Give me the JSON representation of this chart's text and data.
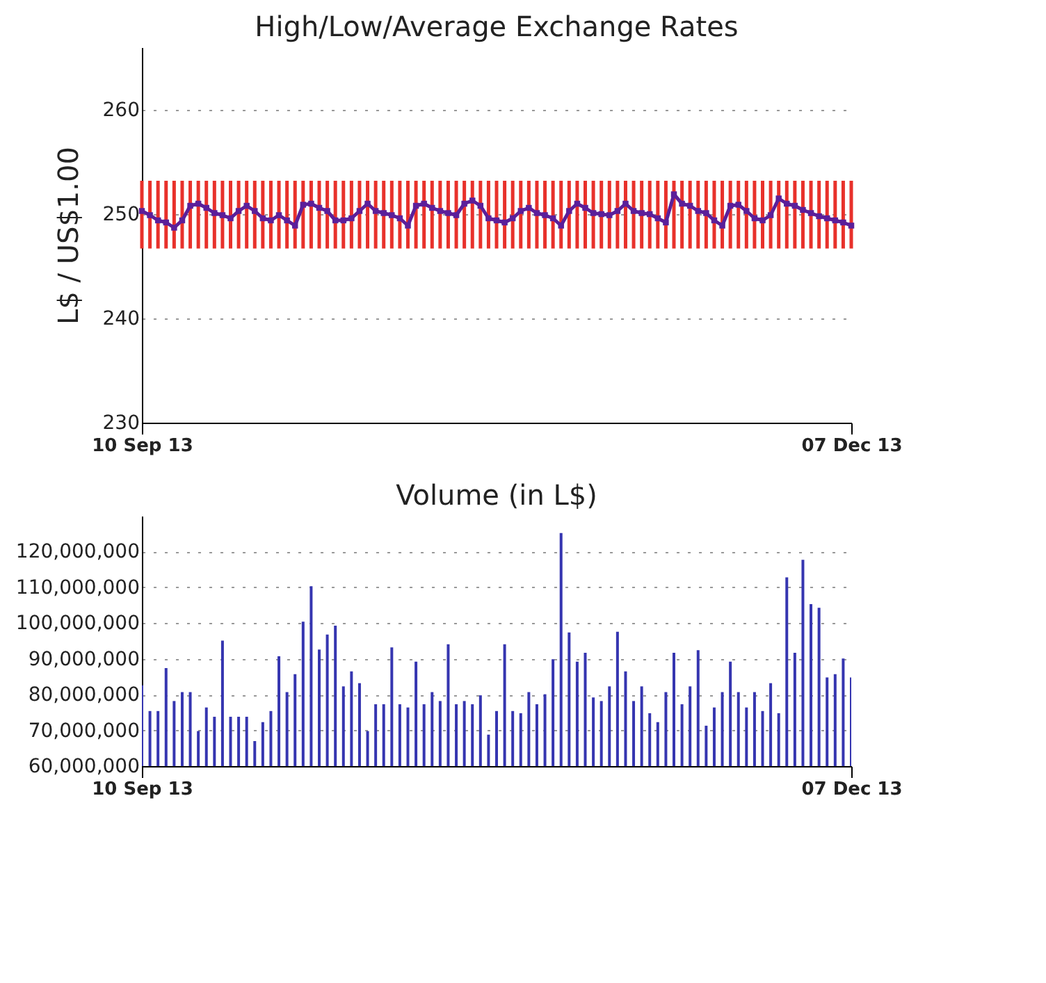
{
  "chart_data": [
    {
      "type": "bar",
      "title": "High/Low/Average Exchange Rates",
      "ylabel": "L$ / US$1.00",
      "x": [
        "2013-09-10",
        "2013-09-11",
        "2013-09-12",
        "2013-09-13",
        "2013-09-14",
        "2013-09-15",
        "2013-09-16",
        "2013-09-17",
        "2013-09-18",
        "2013-09-19",
        "2013-09-20",
        "2013-09-21",
        "2013-09-22",
        "2013-09-23",
        "2013-09-24",
        "2013-09-25",
        "2013-09-26",
        "2013-09-27",
        "2013-09-28",
        "2013-09-29",
        "2013-09-30",
        "2013-10-01",
        "2013-10-02",
        "2013-10-03",
        "2013-10-04",
        "2013-10-05",
        "2013-10-06",
        "2013-10-07",
        "2013-10-08",
        "2013-10-09",
        "2013-10-10",
        "2013-10-11",
        "2013-10-12",
        "2013-10-13",
        "2013-10-14",
        "2013-10-15",
        "2013-10-16",
        "2013-10-17",
        "2013-10-18",
        "2013-10-19",
        "2013-10-20",
        "2013-10-21",
        "2013-10-22",
        "2013-10-23",
        "2013-10-24",
        "2013-10-25",
        "2013-10-26",
        "2013-10-27",
        "2013-10-28",
        "2013-10-29",
        "2013-10-30",
        "2013-10-31",
        "2013-11-01",
        "2013-11-02",
        "2013-11-03",
        "2013-11-04",
        "2013-11-05",
        "2013-11-06",
        "2013-11-07",
        "2013-11-08",
        "2013-11-09",
        "2013-11-10",
        "2013-11-11",
        "2013-11-12",
        "2013-11-13",
        "2013-11-14",
        "2013-11-15",
        "2013-11-16",
        "2013-11-17",
        "2013-11-18",
        "2013-11-19",
        "2013-11-20",
        "2013-11-21",
        "2013-11-22",
        "2013-11-23",
        "2013-11-24",
        "2013-11-25",
        "2013-11-26",
        "2013-11-27",
        "2013-11-28",
        "2013-11-29",
        "2013-11-30",
        "2013-12-01",
        "2013-12-02",
        "2013-12-03",
        "2013-12-04",
        "2013-12-05",
        "2013-12-06",
        "2013-12-07"
      ],
      "series": [
        {
          "type": "bar",
          "color": "#e8312b",
          "base": [
            246.7,
            246.7,
            246.7,
            246.7,
            246.7,
            246.7,
            246.7,
            246.7,
            246.7,
            246.7,
            246.7,
            246.7,
            246.7,
            246.7,
            246.7,
            246.7,
            246.7,
            246.7,
            246.7,
            246.7,
            246.7,
            246.7,
            246.7,
            246.7,
            246.7,
            246.7,
            246.7,
            246.7,
            246.7,
            246.7,
            246.7,
            246.7,
            246.7,
            246.7,
            246.7,
            246.7,
            246.7,
            246.7,
            246.7,
            246.7,
            246.7,
            246.7,
            246.7,
            246.7,
            246.7,
            246.7,
            246.7,
            246.7,
            246.7,
            246.7,
            246.7,
            246.7,
            246.7,
            246.7,
            246.7,
            246.7,
            246.7,
            246.7,
            246.7,
            246.7,
            246.7,
            246.7,
            246.7,
            246.7,
            246.7,
            246.7,
            246.7,
            246.7,
            246.7,
            246.7,
            246.7,
            246.7,
            246.7,
            246.7,
            246.7,
            246.7,
            246.7,
            246.7,
            246.7,
            246.7,
            246.7,
            246.7,
            246.7,
            246.7,
            246.7,
            246.7,
            246.7,
            246.7,
            246.7
          ],
          "values": [
            6.5,
            6.5,
            6.5,
            6.5,
            6.5,
            6.5,
            6.5,
            6.5,
            6.5,
            6.5,
            6.5,
            6.5,
            6.5,
            6.5,
            6.5,
            6.5,
            6.5,
            6.5,
            6.5,
            6.5,
            6.5,
            6.5,
            6.5,
            6.5,
            6.5,
            6.5,
            6.5,
            6.5,
            6.5,
            6.5,
            6.5,
            6.5,
            6.5,
            6.5,
            6.5,
            6.5,
            6.5,
            6.5,
            6.5,
            6.5,
            6.5,
            6.5,
            6.5,
            6.5,
            6.5,
            6.5,
            6.5,
            6.5,
            6.5,
            6.5,
            6.5,
            6.5,
            6.5,
            6.5,
            6.5,
            6.5,
            6.5,
            6.5,
            6.5,
            6.5,
            6.5,
            6.5,
            6.5,
            6.5,
            6.5,
            6.5,
            6.5,
            6.5,
            6.5,
            6.5,
            6.5,
            6.5,
            6.5,
            6.5,
            6.5,
            6.5,
            6.5,
            6.5,
            6.5,
            6.5,
            6.5,
            6.5,
            6.5,
            6.5,
            6.5,
            6.5,
            6.5,
            6.5,
            6.5
          ]
        },
        {
          "type": "line",
          "color": "#5b1f9a",
          "marker": "square",
          "values": [
            250.3,
            249.9,
            249.4,
            249.2,
            248.7,
            249.4,
            250.8,
            251.0,
            250.6,
            250.1,
            249.9,
            249.6,
            250.3,
            250.8,
            250.3,
            249.6,
            249.4,
            249.9,
            249.4,
            248.9,
            250.9,
            251.0,
            250.6,
            250.3,
            249.4,
            249.4,
            249.6,
            250.3,
            251.0,
            250.3,
            250.1,
            249.9,
            249.6,
            248.9,
            250.8,
            251.0,
            250.6,
            250.3,
            250.1,
            249.9,
            251.0,
            251.3,
            250.8,
            249.6,
            249.4,
            249.2,
            249.6,
            250.3,
            250.6,
            250.1,
            249.9,
            249.6,
            248.9,
            250.3,
            251.0,
            250.6,
            250.1,
            250.0,
            249.9,
            250.3,
            251.0,
            250.3,
            250.1,
            250.0,
            249.6,
            249.2,
            251.9,
            251.0,
            250.8,
            250.3,
            250.1,
            249.4,
            248.9,
            250.8,
            250.9,
            250.3,
            249.6,
            249.4,
            249.9,
            251.5,
            251.0,
            250.8,
            250.4,
            250.1,
            249.8,
            249.6,
            249.4,
            249.2,
            248.9
          ]
        }
      ],
      "xlim": [
        "2013-09-10",
        "2013-12-07"
      ],
      "xticks": [
        {
          "value": "2013-09-10",
          "label": "10 Sep 13"
        },
        {
          "value": "2013-12-07",
          "label": "07 Dec 13"
        }
      ],
      "ylim": [
        230,
        266
      ],
      "yticks": [
        230,
        240,
        250,
        260
      ],
      "grid": "y"
    },
    {
      "type": "bar",
      "title": "Volume (in L$)",
      "color": "#3535b0",
      "x": [
        "2013-09-10",
        "2013-09-11",
        "2013-09-12",
        "2013-09-13",
        "2013-09-14",
        "2013-09-15",
        "2013-09-16",
        "2013-09-17",
        "2013-09-18",
        "2013-09-19",
        "2013-09-20",
        "2013-09-21",
        "2013-09-22",
        "2013-09-23",
        "2013-09-24",
        "2013-09-25",
        "2013-09-26",
        "2013-09-27",
        "2013-09-28",
        "2013-09-29",
        "2013-09-30",
        "2013-10-01",
        "2013-10-02",
        "2013-10-03",
        "2013-10-04",
        "2013-10-05",
        "2013-10-06",
        "2013-10-07",
        "2013-10-08",
        "2013-10-09",
        "2013-10-10",
        "2013-10-11",
        "2013-10-12",
        "2013-10-13",
        "2013-10-14",
        "2013-10-15",
        "2013-10-16",
        "2013-10-17",
        "2013-10-18",
        "2013-10-19",
        "2013-10-20",
        "2013-10-21",
        "2013-10-22",
        "2013-10-23",
        "2013-10-24",
        "2013-10-25",
        "2013-10-26",
        "2013-10-27",
        "2013-10-28",
        "2013-10-29",
        "2013-10-30",
        "2013-10-31",
        "2013-11-01",
        "2013-11-02",
        "2013-11-03",
        "2013-11-04",
        "2013-11-05",
        "2013-11-06",
        "2013-11-07",
        "2013-11-08",
        "2013-11-09",
        "2013-11-10",
        "2013-11-11",
        "2013-11-12",
        "2013-11-13",
        "2013-11-14",
        "2013-11-15",
        "2013-11-16",
        "2013-11-17",
        "2013-11-18",
        "2013-11-19",
        "2013-11-20",
        "2013-11-21",
        "2013-11-22",
        "2013-11-23",
        "2013-11-24",
        "2013-11-25",
        "2013-11-26",
        "2013-11-27",
        "2013-11-28",
        "2013-11-29",
        "2013-11-30",
        "2013-12-01",
        "2013-12-02",
        "2013-12-03",
        "2013-12-04",
        "2013-12-05",
        "2013-12-06",
        "2013-12-07"
      ],
      "values": [
        82600000,
        75400000,
        75400000,
        87400000,
        78200000,
        80700000,
        80700000,
        69800000,
        76400000,
        73800000,
        95100000,
        73800000,
        73800000,
        73800000,
        67000000,
        72300000,
        75400000,
        90700000,
        80700000,
        85700000,
        100400000,
        110300000,
        92600000,
        96800000,
        99300000,
        82300000,
        86500000,
        83200000,
        69800000,
        77300000,
        77300000,
        93200000,
        77300000,
        76400000,
        89200000,
        77300000,
        80700000,
        78200000,
        94100000,
        77300000,
        78200000,
        77300000,
        79800000,
        68800000,
        75400000,
        94100000,
        75400000,
        74800000,
        80700000,
        77300000,
        80100000,
        89900000,
        125200000,
        97400000,
        89200000,
        91700000,
        79200000,
        78200000,
        82300000,
        97600000,
        86500000,
        78200000,
        82300000,
        74800000,
        72300000,
        80700000,
        91700000,
        77300000,
        82300000,
        92400000,
        71300000,
        76400000,
        80700000,
        89200000,
        80700000,
        76400000,
        80700000,
        75400000,
        83200000,
        74800000,
        112800000,
        91700000,
        117700000,
        105300000,
        104300000,
        84800000,
        85700000,
        90100000,
        84800000
      ],
      "xlim": [
        "2013-09-10",
        "2013-12-07"
      ],
      "xticks": [
        {
          "value": "2013-09-10",
          "label": "10 Sep 13"
        },
        {
          "value": "2013-12-07",
          "label": "07 Dec 13"
        }
      ],
      "ylim": [
        60000000,
        130000000
      ],
      "yticks": [
        {
          "value": 60000000,
          "label": "60,000,000"
        },
        {
          "value": 70000000,
          "label": "70,000,000"
        },
        {
          "value": 80000000,
          "label": "80,000,000"
        },
        {
          "value": 90000000,
          "label": "90,000,000"
        },
        {
          "value": 100000000,
          "label": "100,000,000"
        },
        {
          "value": 110000000,
          "label": "110,000,000"
        },
        {
          "value": 120000000,
          "label": "120,000,000"
        }
      ],
      "grid": "y"
    }
  ]
}
